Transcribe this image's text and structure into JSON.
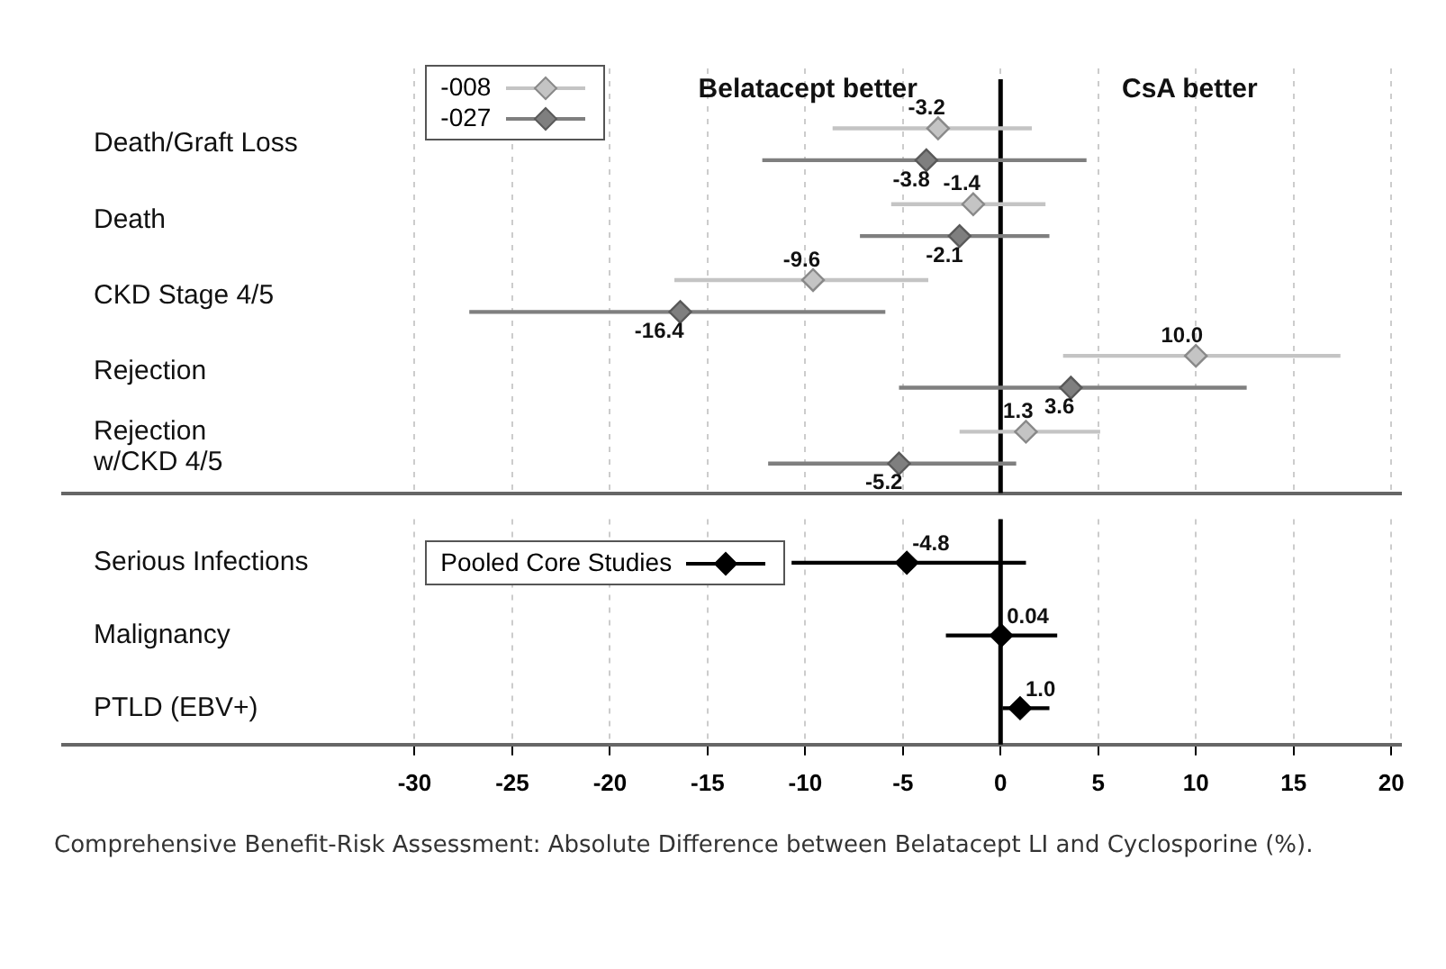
{
  "chart_data": [
    {
      "type": "scatter",
      "orientation": "horizontal",
      "categories": [
        "Death/Graft Loss",
        "Death",
        "CKD Stage 4/5",
        "Rejection",
        "Rejection\nw/CKD 4/5"
      ],
      "series": [
        {
          "name": "-008",
          "color": "#c4c4c4",
          "values": [
            -3.2,
            -1.4,
            -9.6,
            10.0,
            1.3
          ],
          "value_labels": [
            "-3.2",
            "-1.4",
            "-9.6",
            "10.0",
            "1.3"
          ],
          "errors": [
            [
              -8.6,
              1.6
            ],
            [
              -5.6,
              2.3
            ],
            [
              -16.7,
              -3.7
            ],
            [
              3.2,
              17.4
            ],
            [
              -2.1,
              5.1
            ]
          ]
        },
        {
          "name": "-027",
          "color": "#7f7f7f",
          "values": [
            -3.8,
            -2.1,
            -16.4,
            3.6,
            -5.2
          ],
          "value_labels": [
            "-3.8",
            "-2.1",
            "-16.4",
            "3.6",
            "-5.2"
          ],
          "errors": [
            [
              -12.2,
              4.4
            ],
            [
              -7.2,
              2.5
            ],
            [
              -27.2,
              -5.9
            ],
            [
              -5.2,
              12.6
            ],
            [
              -11.9,
              0.8
            ]
          ]
        }
      ],
      "xlim": [
        -48,
        20.5
      ],
      "xticks": [
        -30,
        -25,
        -20,
        -15,
        -10,
        -5,
        0,
        5,
        10,
        15,
        20
      ],
      "tick_labels": false,
      "ref_lines": [
        {
          "axis": "x",
          "value": 0,
          "color": "#000000"
        }
      ],
      "grid": "x",
      "legend": "top left",
      "marker": "diamond",
      "data_labels": true,
      "annotations": [
        "Belatacept better",
        "CsA better"
      ]
    },
    {
      "type": "scatter",
      "orientation": "horizontal",
      "categories": [
        "Serious Infections",
        "Malignancy",
        "PTLD (EBV+)"
      ],
      "series": [
        {
          "name": "Pooled Core Studies",
          "color": "#000000",
          "values": [
            -4.8,
            0.04,
            1.0
          ],
          "value_labels": [
            "-4.8",
            "0.04",
            "1.0"
          ],
          "errors": [
            [
              -10.7,
              1.3
            ],
            [
              -2.8,
              2.9
            ],
            [
              0.1,
              2.5
            ]
          ]
        }
      ],
      "xlim": [
        -48,
        20.5
      ],
      "xticks": [
        -30,
        -25,
        -20,
        -15,
        -10,
        -5,
        0,
        5,
        10,
        15,
        20
      ],
      "tick_labels": "x",
      "ref_lines": [
        {
          "axis": "x",
          "value": 0,
          "color": "#000000"
        }
      ],
      "grid": "x",
      "legend": "top left",
      "marker": "diamond",
      "data_labels": true,
      "annotations": [
        "Comprehensive Benefit-Risk Assessment: Absolute Difference between Belatacept LI and Cyclosporine (%)."
      ]
    }
  ]
}
